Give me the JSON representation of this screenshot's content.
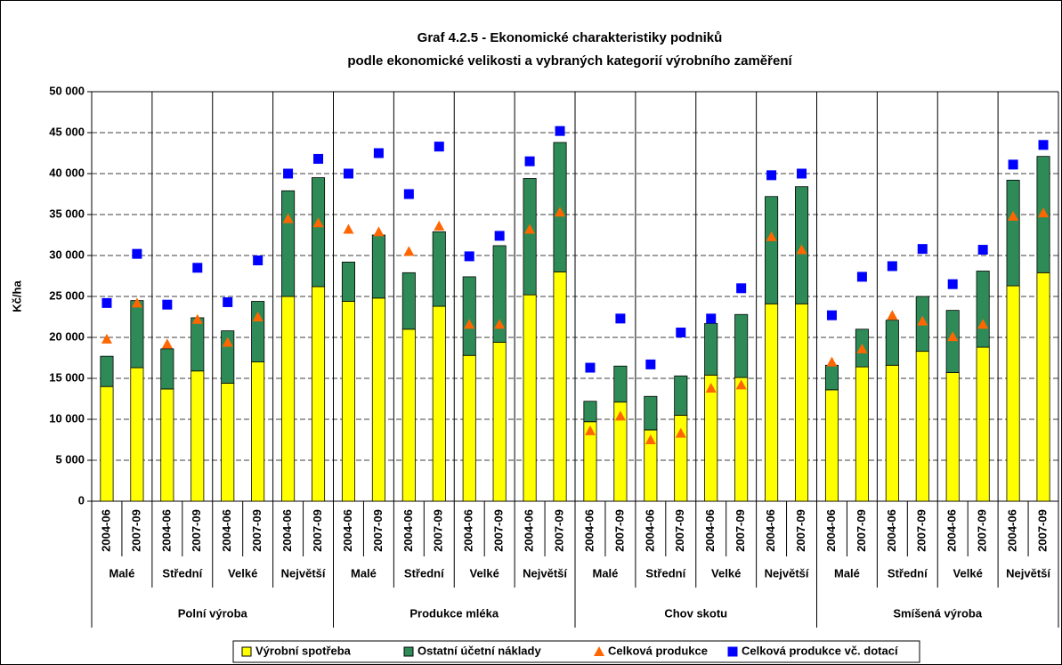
{
  "chart_data": {
    "type": "bar",
    "stacked": true,
    "title": [
      "Graf 4.2.5 - Ekonomické charakteristiky podniků",
      "podle ekonomické velikosti a vybraných kategorií výrobního zaměření"
    ],
    "ylabel": "Kč/ha",
    "ylim": [
      0,
      50000
    ],
    "yticks": [
      0,
      {
        "value": 5000,
        "label": "5 000"
      },
      {
        "value": 10000,
        "label": "10 000"
      },
      {
        "value": 15000,
        "label": "15 000"
      },
      {
        "value": 20000,
        "label": "20 000"
      },
      {
        "value": 25000,
        "label": "25 000"
      },
      {
        "value": 30000,
        "label": "30 000"
      },
      {
        "value": 35000,
        "label": "35 000"
      },
      {
        "value": 40000,
        "label": "40 000"
      },
      {
        "value": 45000,
        "label": "45 000"
      },
      {
        "value": 50000,
        "label": "50 000"
      }
    ],
    "grid": true,
    "categories": [
      "2004-06",
      "2007-09",
      "2004-06",
      "2007-09",
      "2004-06",
      "2007-09",
      "2004-06",
      "2007-09",
      "2004-06",
      "2007-09",
      "2004-06",
      "2007-09",
      "2004-06",
      "2007-09",
      "2004-06",
      "2007-09",
      "2004-06",
      "2007-09",
      "2004-06",
      "2007-09",
      "2004-06",
      "2007-09",
      "2004-06",
      "2007-09",
      "2004-06",
      "2007-09",
      "2004-06",
      "2007-09",
      "2004-06",
      "2007-09",
      "2004-06",
      "2007-09"
    ],
    "size_groups": [
      "Malé",
      "Střední",
      "Velké",
      "Největší",
      "Malé",
      "Střední",
      "Velké",
      "Největší",
      "Malé",
      "Střední",
      "Velké",
      "Největší",
      "Malé",
      "Střední",
      "Velké",
      "Největší"
    ],
    "production_groups": [
      "Polní výroba",
      "Produkce mléka",
      "Chov skotu",
      "Smíšená výroba"
    ],
    "legend": "bottom",
    "series": [
      {
        "name": "Výrobní spotřeba",
        "type": "bar",
        "color": "#ffff00",
        "values": [
          14000,
          16300,
          13700,
          15900,
          14400,
          17000,
          25000,
          26200,
          24400,
          24800,
          21000,
          23800,
          17800,
          19400,
          25200,
          28000,
          9700,
          12100,
          8700,
          10500,
          15400,
          15100,
          24100,
          24100,
          13600,
          16400,
          16600,
          18300,
          15700,
          18800,
          26300,
          27900
        ]
      },
      {
        "name": "Ostatní účetní náklady",
        "type": "bar",
        "color": "#2e8b57",
        "values": [
          3700,
          8200,
          4900,
          6500,
          6400,
          7400,
          12900,
          13300,
          4800,
          7700,
          6900,
          9100,
          9600,
          11800,
          14200,
          15800,
          2500,
          4400,
          4100,
          4800,
          6300,
          7700,
          13100,
          14300,
          3000,
          4600,
          5500,
          6700,
          7600,
          9300,
          12900,
          14200
        ]
      },
      {
        "name": "Celková produkce",
        "type": "scatter",
        "marker": "triangle",
        "color": "#ff6600",
        "values": [
          19800,
          24200,
          19200,
          22200,
          19400,
          22500,
          34500,
          34000,
          33200,
          32900,
          30500,
          33600,
          21600,
          21600,
          33200,
          35300,
          8600,
          10400,
          7500,
          8300,
          13800,
          14200,
          32300,
          30700,
          17000,
          18600,
          22700,
          22000,
          20100,
          21600,
          34800,
          35200
        ]
      },
      {
        "name": "Celková produkce vč. dotací",
        "type": "scatter",
        "marker": "square",
        "color": "#0000ff",
        "values": [
          24200,
          30200,
          24000,
          28500,
          24300,
          29400,
          40000,
          41800,
          40000,
          42500,
          37500,
          43300,
          29900,
          32400,
          41500,
          45200,
          16300,
          22300,
          16700,
          20600,
          22300,
          26000,
          39800,
          40000,
          22700,
          27400,
          28700,
          30800,
          26500,
          30700,
          41100,
          43500
        ]
      }
    ]
  }
}
